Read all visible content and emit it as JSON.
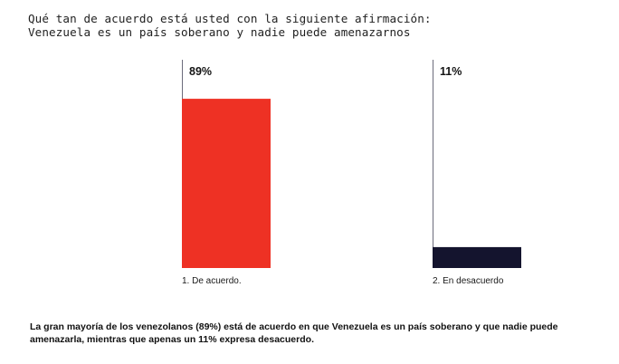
{
  "colors": {
    "agree": "#ee3124",
    "disagree": "#14142e",
    "axis": "#6b6b7b",
    "text": "#141414"
  },
  "chart_data": {
    "type": "bar",
    "title": "Qué tan de acuerdo está usted con la siguiente afirmación:",
    "subtitle": "Venezuela es un país soberano y nadie puede amenazarnos",
    "categories": [
      "1.  De acuerdo.",
      "2.  En desacuerdo"
    ],
    "values": [
      89,
      11
    ],
    "value_labels": [
      "89%",
      "11%"
    ],
    "unit": "%",
    "ylim": [
      0,
      100
    ],
    "xlabel": "",
    "ylabel": "",
    "grid": false,
    "legend": "none"
  },
  "summary": {
    "text": "La gran mayoría de los venezolanos (89%) está de acuerdo en que Venezuela es un país soberano y que nadie puede amenazarla, mientras que apenas un 11% expresa desacuerdo."
  }
}
